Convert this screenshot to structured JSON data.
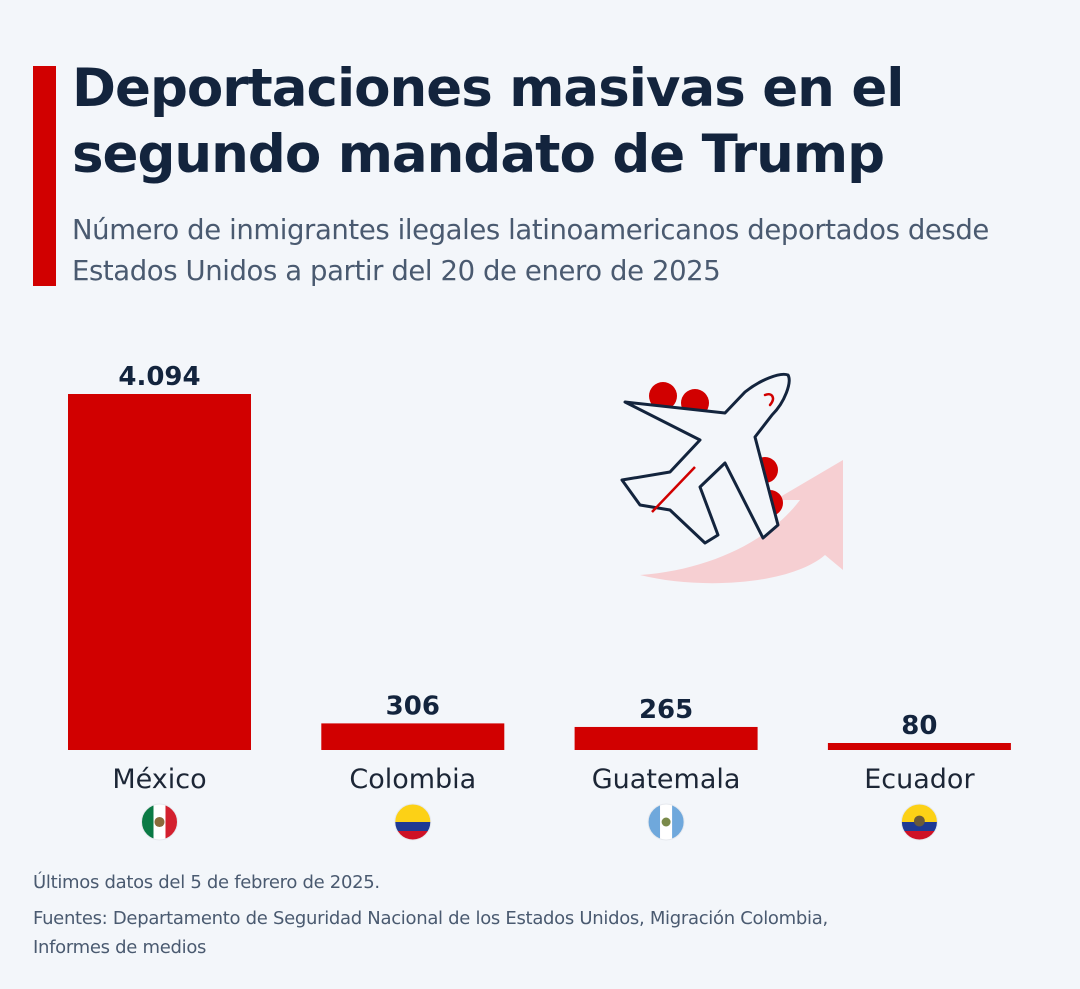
{
  "header": {
    "title": "Deportaciones masivas en el segundo mandato de Trump",
    "subtitle": "Número de inmigrantes ilegales latinoamericanos deportados desde Estados Unidos a partir del 20 de enero de 2025"
  },
  "colors": {
    "accent": "#d10000",
    "bar": "#d10000",
    "title": "#13243d",
    "subtitle": "#4a5a70",
    "background": "#f3f6fa"
  },
  "chart_data": {
    "type": "bar",
    "title": "Deportaciones masivas en el segundo mandato de Trump",
    "subtitle": "Número de inmigrantes ilegales latinoamericanos deportados desde Estados Unidos a partir del 20 de enero de 2025",
    "categories": [
      "México",
      "Colombia",
      "Guatemala",
      "Ecuador"
    ],
    "values": [
      4094,
      306,
      265,
      80
    ],
    "value_labels": [
      "4.094",
      "306",
      "265",
      "80"
    ],
    "flags": [
      "mexico-flag-icon",
      "colombia-flag-icon",
      "guatemala-flag-icon",
      "ecuador-flag-icon"
    ],
    "xlabel": "",
    "ylabel": "",
    "ylim": [
      0,
      4094
    ],
    "grid": false,
    "legend": "none"
  },
  "illustration": "airplane-takeoff-icon",
  "footer": {
    "note": "Últimos datos del 5 de febrero de 2025.",
    "sources": "Fuentes: Departamento de Seguridad Nacional de los Estados Unidos, Migración Colombia, Informes de medios"
  }
}
